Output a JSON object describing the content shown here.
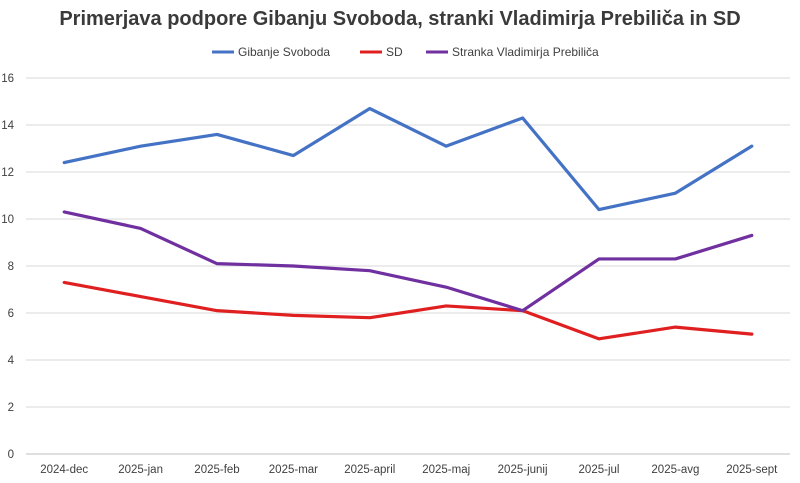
{
  "chart_data": {
    "type": "line",
    "title": "Primerjava podpore Gibanju Svoboda, stranki Vladimirja Prebiliča in SD",
    "xlabel": "",
    "ylabel": "",
    "categories": [
      "2024-dec",
      "2025-jan",
      "2025-feb",
      "2025-mar",
      "2025-april",
      "2025-maj",
      "2025-junij",
      "2025-jul",
      "2025-avg",
      "2025-sept"
    ],
    "ylim": [
      0,
      16
    ],
    "yticks": [
      0,
      2,
      4,
      6,
      8,
      10,
      12,
      14,
      16
    ],
    "grid": true,
    "legend": "top",
    "series": [
      {
        "name": "Gibanje Svoboda",
        "color": "#4472c4",
        "values": [
          12.4,
          13.1,
          13.6,
          12.7,
          14.7,
          13.1,
          14.3,
          10.4,
          11.1,
          13.1
        ]
      },
      {
        "name": "SD",
        "color": "#e02020",
        "values": [
          7.3,
          6.7,
          6.1,
          5.9,
          5.8,
          6.3,
          6.1,
          4.9,
          5.4,
          5.1
        ]
      },
      {
        "name": "Stranka Vladimirja Prebiliča",
        "color": "#7030a0",
        "values": [
          10.3,
          9.6,
          8.1,
          8.0,
          7.8,
          7.1,
          6.1,
          8.3,
          8.3,
          9.3
        ]
      }
    ]
  }
}
